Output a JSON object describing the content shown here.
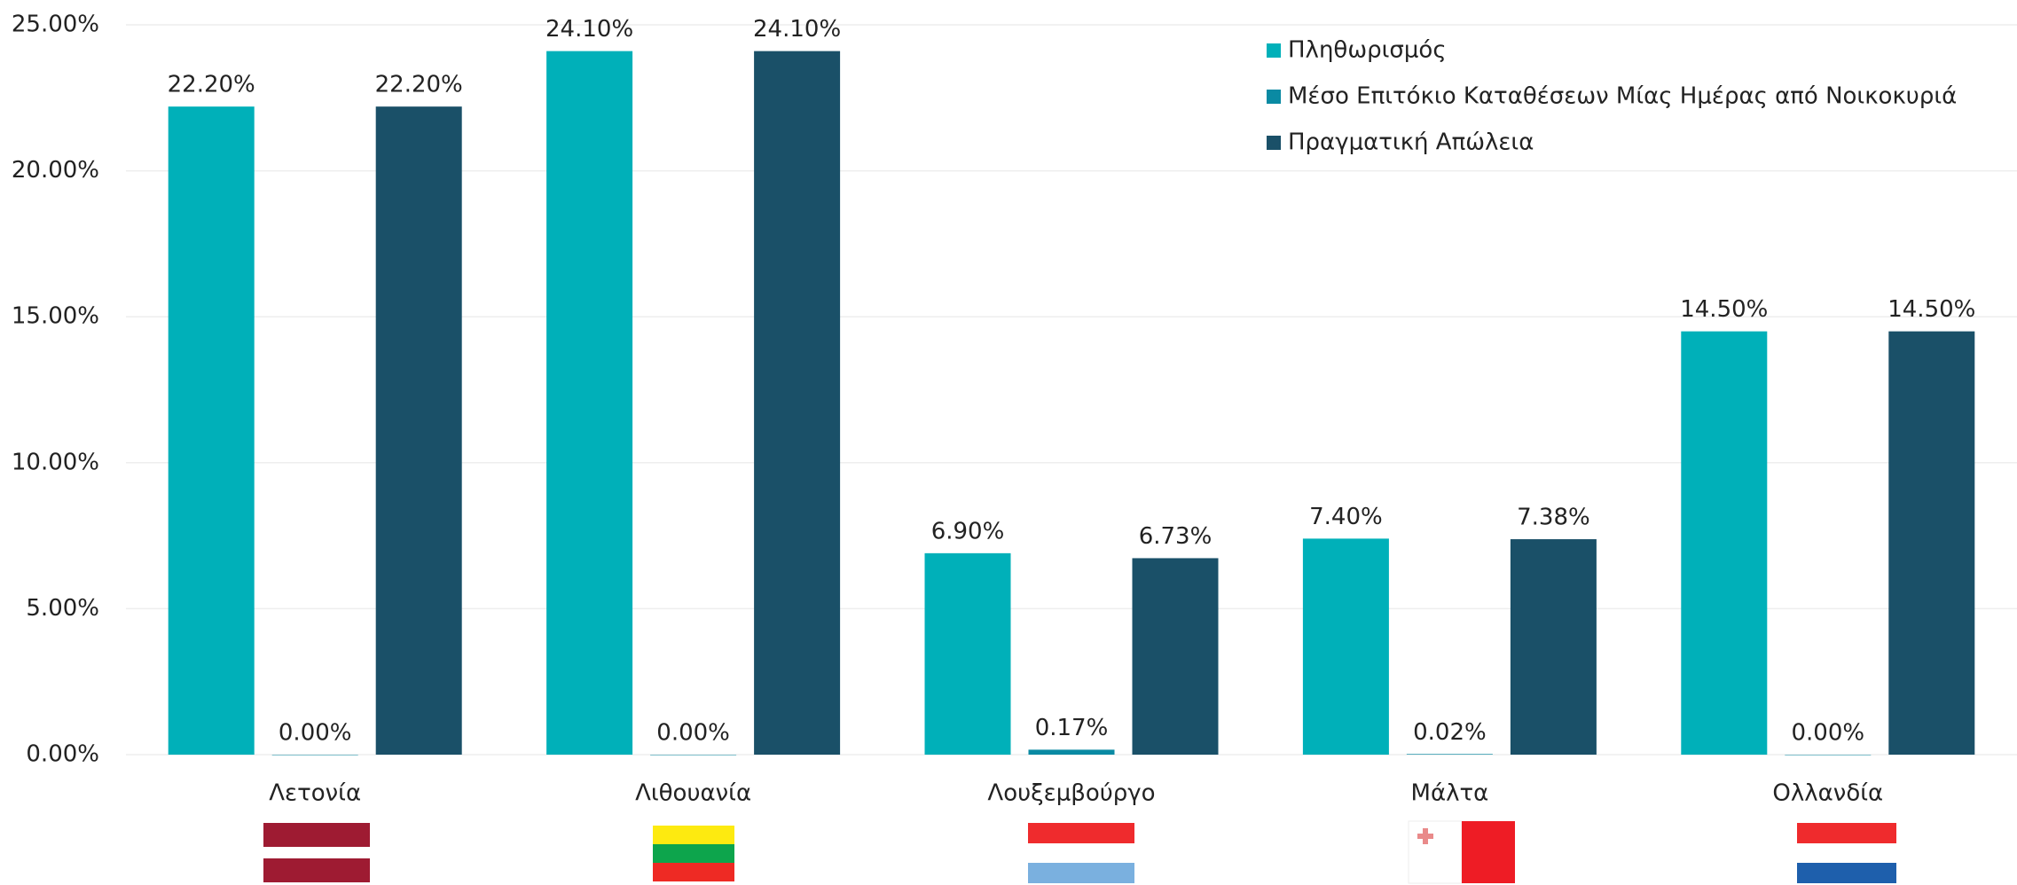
{
  "chart_data": {
    "type": "bar",
    "categories": [
      "Λετονία",
      "Λιθουανία",
      "Λουξεμβούργο",
      "Μάλτα",
      "Ολλανδία"
    ],
    "series": [
      {
        "name": "Πληθωρισμός",
        "color": "#00b0b9",
        "values": [
          22.2,
          24.1,
          6.9,
          7.4,
          14.5
        ],
        "value_labels": [
          "22.20%",
          "24.10%",
          "6.90%",
          "7.40%",
          "14.50%"
        ]
      },
      {
        "name": "Μέσο Επιτόκιο Καταθέσεων Μίας Ημέρας από Νοικοκυριά",
        "color": "#0a8aa3",
        "values": [
          0,
          0,
          0.17,
          0.02,
          0
        ],
        "value_labels": [
          "0.00%",
          "0.00%",
          "0.17%",
          "0.02%",
          "0.00%"
        ]
      },
      {
        "name": "Πραγματική Απώλεια",
        "color": "#1a5068",
        "values": [
          22.2,
          24.1,
          6.73,
          7.38,
          14.5
        ],
        "value_labels": [
          "22.20%",
          "24.10%",
          "6.73%",
          "7.38%",
          "14.50%"
        ]
      }
    ],
    "ylim": [
      0,
      25
    ],
    "yticks": [
      {
        "value": 0,
        "label": "0.00%"
      },
      {
        "value": 5,
        "label": "5.00%"
      },
      {
        "value": 10,
        "label": "10.00%"
      },
      {
        "value": 15,
        "label": "15.00%"
      },
      {
        "value": 20,
        "label": "20.00%"
      },
      {
        "value": 25,
        "label": "25.00%"
      }
    ],
    "grid": true,
    "legend": "top-right"
  }
}
